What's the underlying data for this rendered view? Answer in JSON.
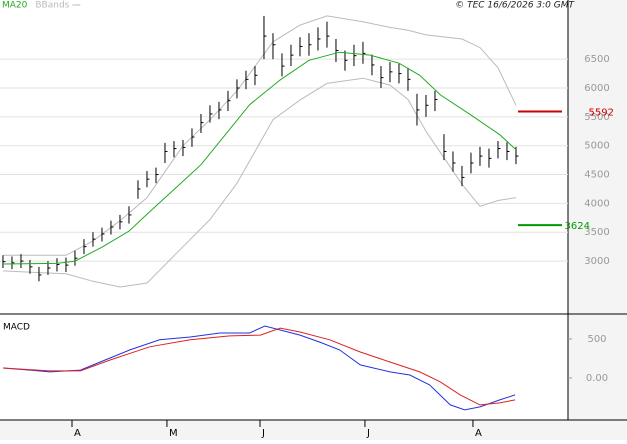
{
  "chart_data": [
    {
      "type": "ohlc",
      "source": "© TEC 16/6/2026 3:0 GMT",
      "xlim": [
        -0.33,
        62.78
      ],
      "ylim": [
        2100,
        7300
      ],
      "yticks": [
        3000,
        3500,
        4000,
        4500,
        5000,
        5500,
        6000,
        6500
      ],
      "grid": true,
      "color": "#000000",
      "close": [
        2990,
        2970,
        3000,
        2900,
        2760,
        2880,
        2940,
        2930,
        3050,
        3250,
        3380,
        3470,
        3590,
        3680,
        3800,
        4250,
        4420,
        4500,
        4900,
        4950,
        4970,
        5150,
        5400,
        5550,
        5620,
        5780,
        6000,
        6150,
        6220,
        6900,
        6750,
        6380,
        6570,
        6720,
        6750,
        6850,
        6900,
        6650,
        6480,
        6560,
        6600,
        6400,
        6180,
        6280,
        6250,
        6150,
        5620,
        5700,
        5800,
        4900,
        4700,
        4450,
        4700,
        4820,
        4780,
        4950,
        4900,
        4820
      ],
      "high": [
        3100,
        3080,
        3120,
        3020,
        2900,
        3000,
        3050,
        3060,
        3180,
        3380,
        3500,
        3580,
        3700,
        3800,
        3950,
        4400,
        4560,
        4620,
        5050,
        5080,
        5100,
        5300,
        5550,
        5700,
        5760,
        5950,
        6150,
        6300,
        6380,
        7250,
        6950,
        6600,
        6750,
        6880,
        6950,
        7050,
        7150,
        6850,
        6650,
        6750,
        6800,
        6580,
        6380,
        6450,
        6420,
        6350,
        5900,
        5880,
        5950,
        5200,
        4900,
        4650,
        4880,
        4980,
        4950,
        5080,
        5060,
        4980
      ],
      "low": [
        2880,
        2860,
        2880,
        2780,
        2650,
        2760,
        2820,
        2810,
        2920,
        3120,
        3250,
        3340,
        3460,
        3550,
        3650,
        4080,
        4280,
        4350,
        4700,
        4800,
        4820,
        4980,
        5220,
        5400,
        5460,
        5600,
        5820,
        5980,
        6050,
        6500,
        6500,
        6200,
        6380,
        6550,
        6560,
        6650,
        6700,
        6450,
        6300,
        6380,
        6420,
        6220,
        6000,
        6100,
        6080,
        5950,
        5350,
        5500,
        5600,
        4750,
        4550,
        4300,
        4520,
        4650,
        4620,
        4780,
        4750,
        4680
      ],
      "series": [
        {
          "name": "MA20",
          "color": "#22aa22",
          "x": [
            0,
            6,
            8,
            11,
            14,
            16,
            19,
            22,
            24.7,
            27.4,
            30.8,
            34,
            37.4,
            40.8,
            44,
            46.3,
            48.6,
            52,
            55.2,
            57
          ],
          "values": [
            2950,
            2960,
            3000,
            3240,
            3520,
            3810,
            4240,
            4670,
            5190,
            5710,
            6140,
            6480,
            6620,
            6570,
            6430,
            6220,
            5880,
            5530,
            5190,
            4930
          ]
        }
      ],
      "bands": {
        "name": "BBands",
        "color": "#bbbbbb",
        "x": [
          0,
          4,
          7,
          10,
          13,
          16,
          20,
          23,
          26,
          30,
          33,
          36,
          40,
          43,
          45,
          47,
          51,
          53,
          55,
          57
        ],
        "upper": [
          3100,
          3100,
          3100,
          3350,
          3700,
          4100,
          5000,
          5450,
          5950,
          6800,
          7090,
          7250,
          7150,
          7050,
          7000,
          6920,
          6850,
          6700,
          6350,
          5700
        ],
        "lower": [
          2830,
          2800,
          2780,
          2650,
          2550,
          2620,
          3250,
          3720,
          4350,
          5450,
          5790,
          6080,
          6170,
          6050,
          5800,
          5250,
          4330,
          3950,
          4050,
          4100
        ]
      },
      "levels": [
        {
          "value": 5592,
          "color": "#cc0000"
        },
        {
          "value": 3624,
          "color": "#009900"
        }
      ]
    },
    {
      "type": "line",
      "title": "MACD",
      "xlim": [
        -0.33,
        62.78
      ],
      "ylim": [
        -540,
        795
      ],
      "yticks": [
        500,
        {
          "value": 0,
          "label": "0.00"
        }
      ],
      "xticks": [
        {
          "value": 7.67,
          "label": "A"
        },
        {
          "value": 18.22,
          "label": "M"
        },
        {
          "value": 28.56,
          "label": "J"
        },
        {
          "value": 40.22,
          "label": "J"
        },
        {
          "value": 52.22,
          "label": "A"
        }
      ],
      "series": [
        {
          "color": "#2233dd",
          "x": [
            0,
            3,
            5.2,
            8.6,
            10.8,
            14.1,
            17.4,
            20.8,
            24.1,
            27.4,
            29.1,
            30.8,
            33,
            35.2,
            37.4,
            39.7,
            43,
            45.2,
            47.4,
            49.7,
            51.3,
            53,
            55.2,
            56.9
          ],
          "values": [
            128,
            100,
            77,
            100,
            205,
            360,
            490,
            525,
            577,
            577,
            667,
            615,
            550,
            460,
            360,
            167,
            77,
            38,
            -90,
            -346,
            -410,
            -372,
            -282,
            -218
          ]
        },
        {
          "color": "#dd2222",
          "x": [
            0,
            5.2,
            8.6,
            11.9,
            16.3,
            20.8,
            25.2,
            28.6,
            30.8,
            33,
            36.3,
            39.7,
            43,
            46.3,
            48.6,
            50.8,
            53,
            55.2,
            56.9
          ],
          "values": [
            128,
            90,
            90,
            230,
            400,
            490,
            540,
            550,
            640,
            590,
            490,
            333,
            205,
            77,
            -51,
            -218,
            -346,
            -320,
            -282
          ]
        }
      ]
    }
  ]
}
